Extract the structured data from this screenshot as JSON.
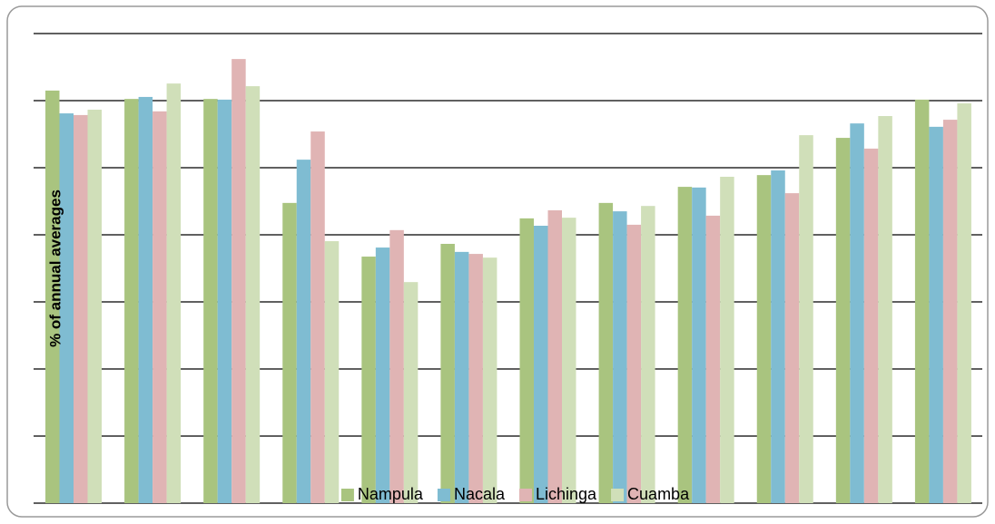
{
  "chart_data": {
    "type": "bar",
    "y_label": "% of annual averages",
    "categories": [
      null,
      null,
      null,
      null,
      null,
      null,
      null,
      null,
      null,
      null,
      null,
      null
    ],
    "series": [
      {
        "name": "Nampula",
        "color": "#a9c47f",
        "values": [
          123.0,
          120.5,
          120.5,
          89.5,
          73.5,
          77.3,
          84.9,
          89.5,
          94.3,
          97.8,
          108.9,
          120.3
        ]
      },
      {
        "name": "Nacala",
        "color": "#7fbcd2",
        "values": [
          116.2,
          121.1,
          120.3,
          102.4,
          76.2,
          74.9,
          82.7,
          87.0,
          94.1,
          99.2,
          113.2,
          112.2
        ]
      },
      {
        "name": "Lichinga",
        "color": "#e0b4b4",
        "values": [
          115.7,
          116.8,
          132.4,
          110.8,
          81.4,
          74.3,
          87.3,
          83.0,
          85.7,
          92.4,
          105.7,
          114.3
        ]
      },
      {
        "name": "Cuamba",
        "color": "#d0dfb9",
        "values": [
          117.3,
          125.1,
          124.3,
          78.1,
          65.9,
          73.2,
          85.1,
          88.6,
          97.3,
          109.7,
          115.4,
          119.2
        ]
      }
    ],
    "ylim": [
      0,
      140
    ],
    "yticks": [
      0,
      20,
      40,
      60,
      80,
      100,
      120,
      140
    ],
    "grid": true,
    "legend": "bottom"
  }
}
